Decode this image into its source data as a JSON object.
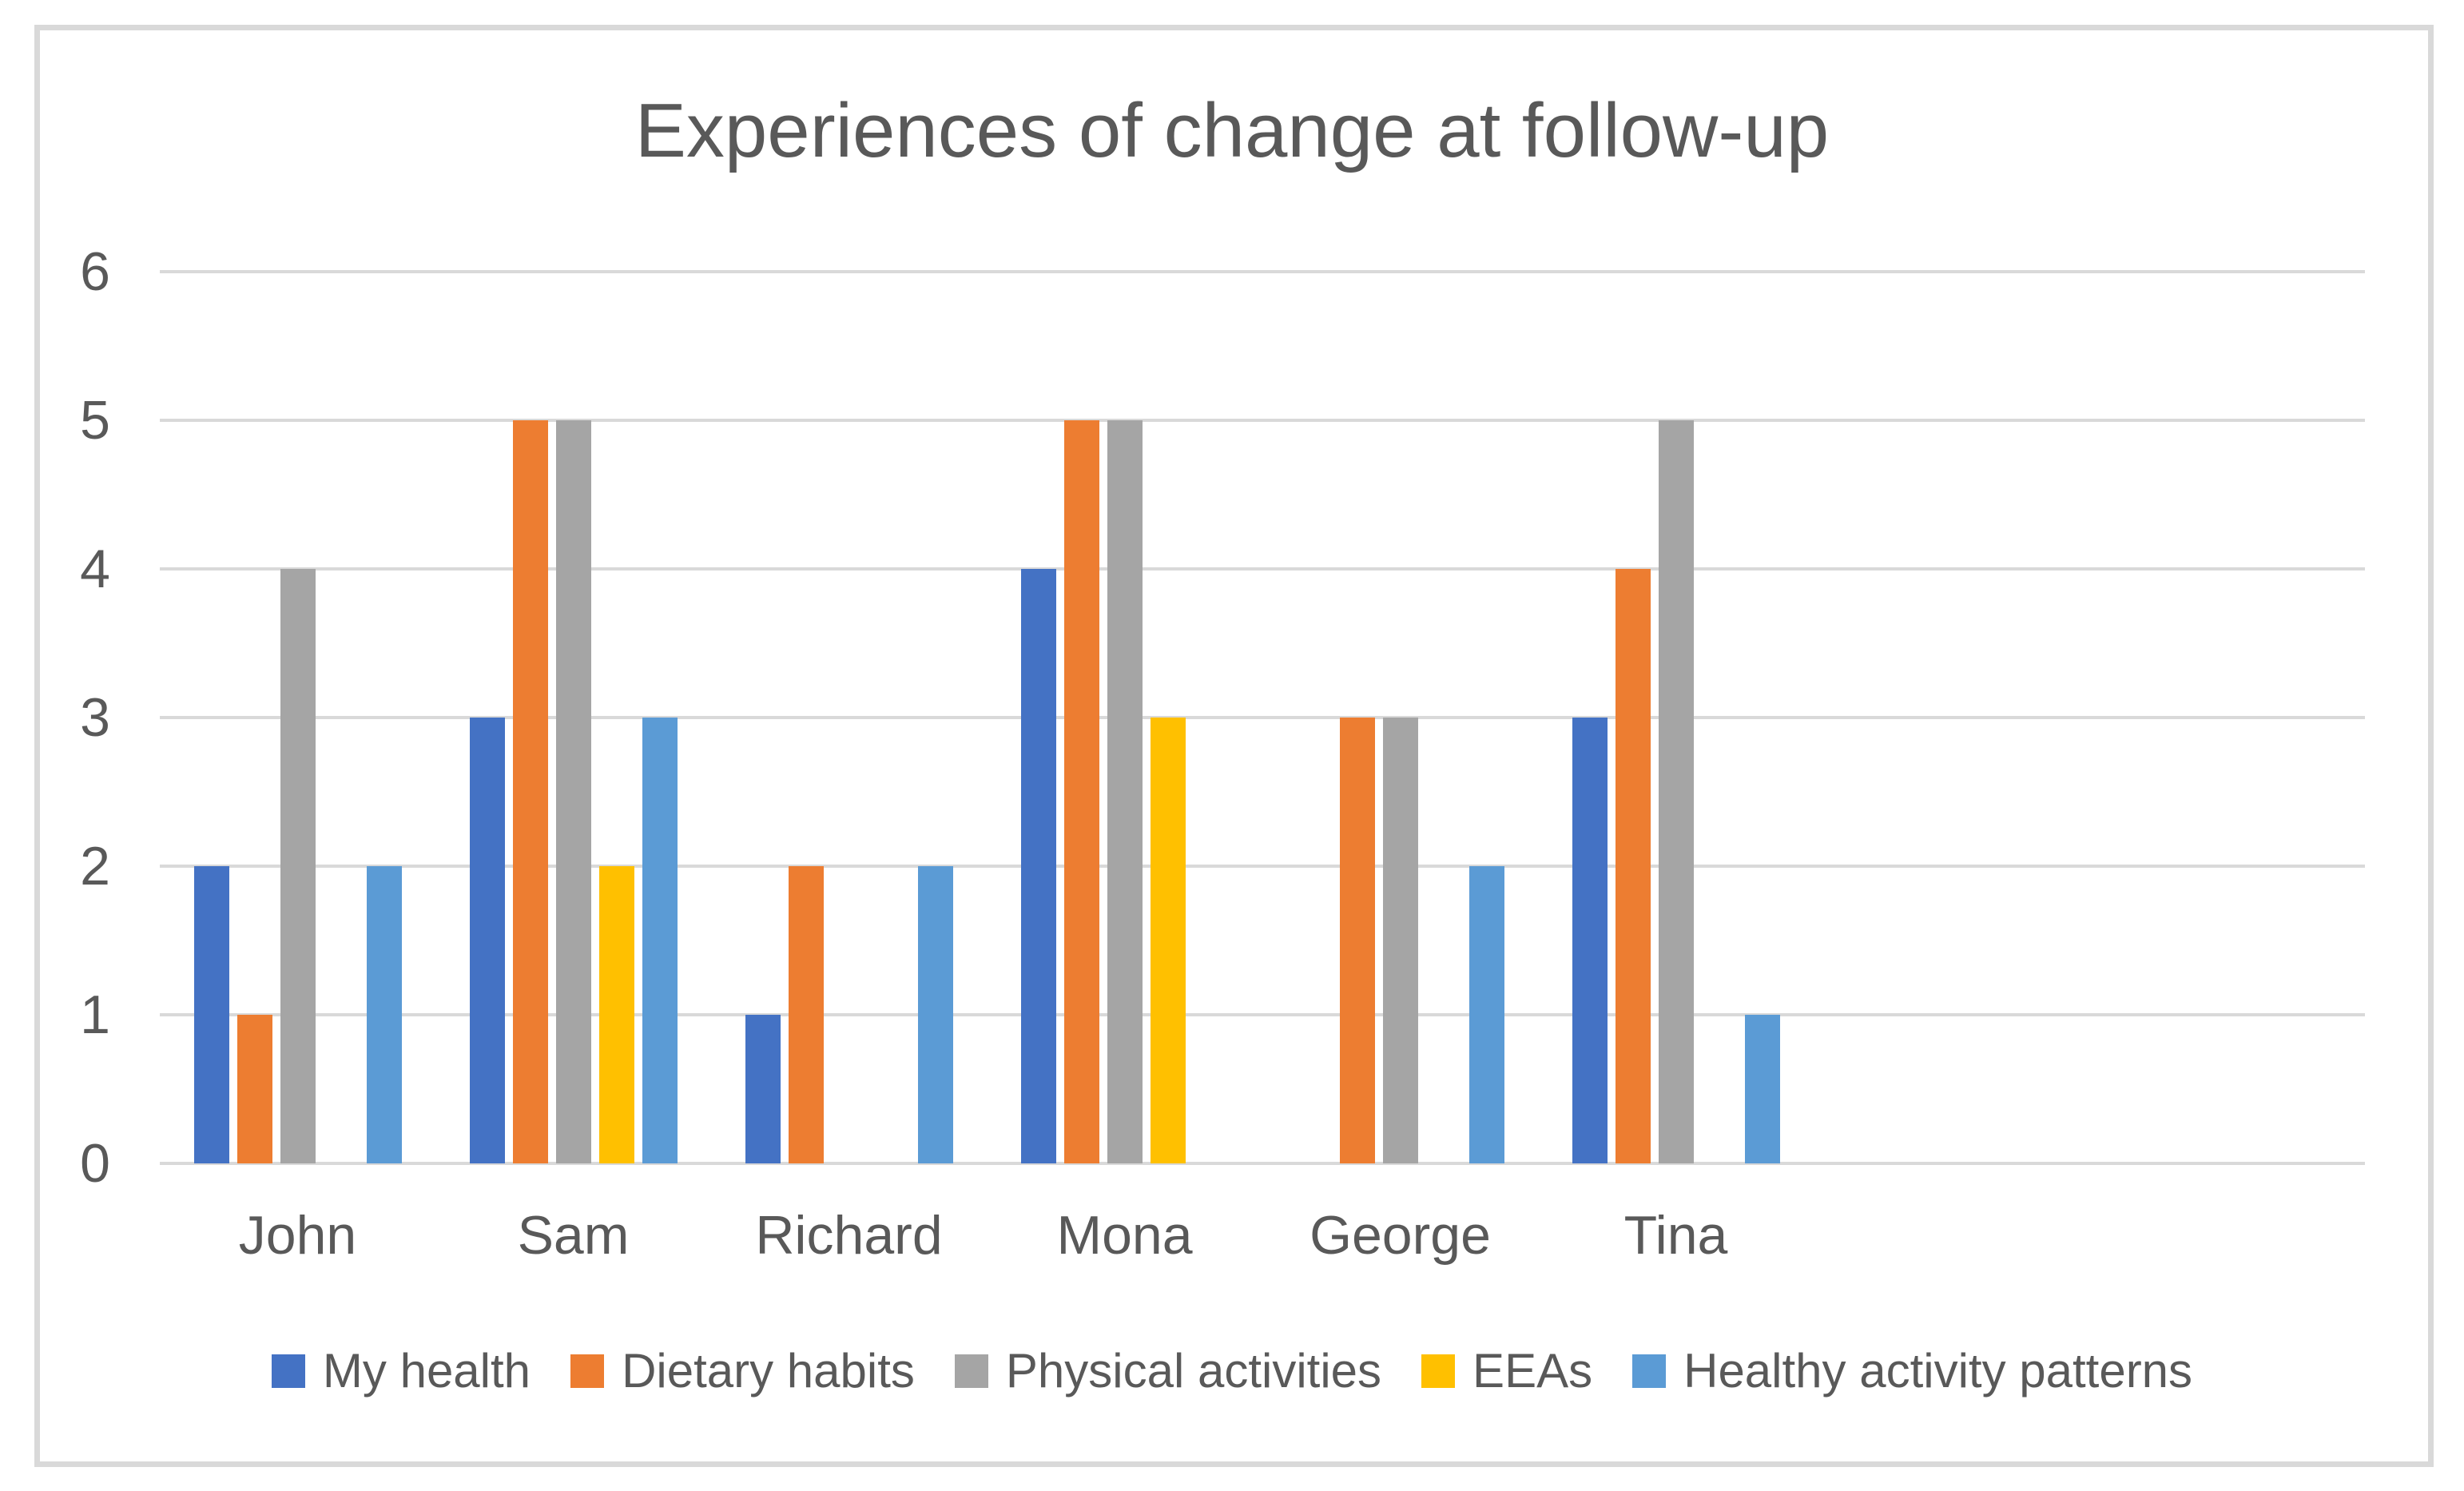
{
  "chart_data": {
    "type": "bar",
    "title": "Experiences of change at follow-up",
    "categories": [
      "John",
      "Sam",
      "Richard",
      "Mona",
      "George",
      "Tina"
    ],
    "series": [
      {
        "name": "My health",
        "color": "#4472C4",
        "values": [
          2,
          3,
          1,
          4,
          0,
          3
        ]
      },
      {
        "name": "Dietary habits",
        "color": "#ED7D31",
        "values": [
          1,
          5,
          2,
          5,
          3,
          4
        ]
      },
      {
        "name": "Physical activities",
        "color": "#A5A5A5",
        "values": [
          4,
          5,
          0,
          5,
          3,
          5
        ]
      },
      {
        "name": "EEAs",
        "color": "#FFC000",
        "values": [
          0,
          2,
          0,
          3,
          0,
          0
        ]
      },
      {
        "name": "Healthy activity patterns",
        "color": "#5B9BD5",
        "values": [
          2,
          3,
          2,
          0,
          2,
          1
        ]
      }
    ],
    "ylim": [
      0,
      6
    ],
    "yticks": [
      0,
      1,
      2,
      3,
      4,
      5,
      6
    ],
    "xlabel": "",
    "ylabel": "",
    "grid": true,
    "legend_position": "bottom",
    "empty_trailing_category_slots": 2,
    "text_color": "#595959",
    "gridline_color": "#D9D9D9",
    "frame_border_color": "#D9D9D9",
    "background_color": "#FFFFFF"
  }
}
